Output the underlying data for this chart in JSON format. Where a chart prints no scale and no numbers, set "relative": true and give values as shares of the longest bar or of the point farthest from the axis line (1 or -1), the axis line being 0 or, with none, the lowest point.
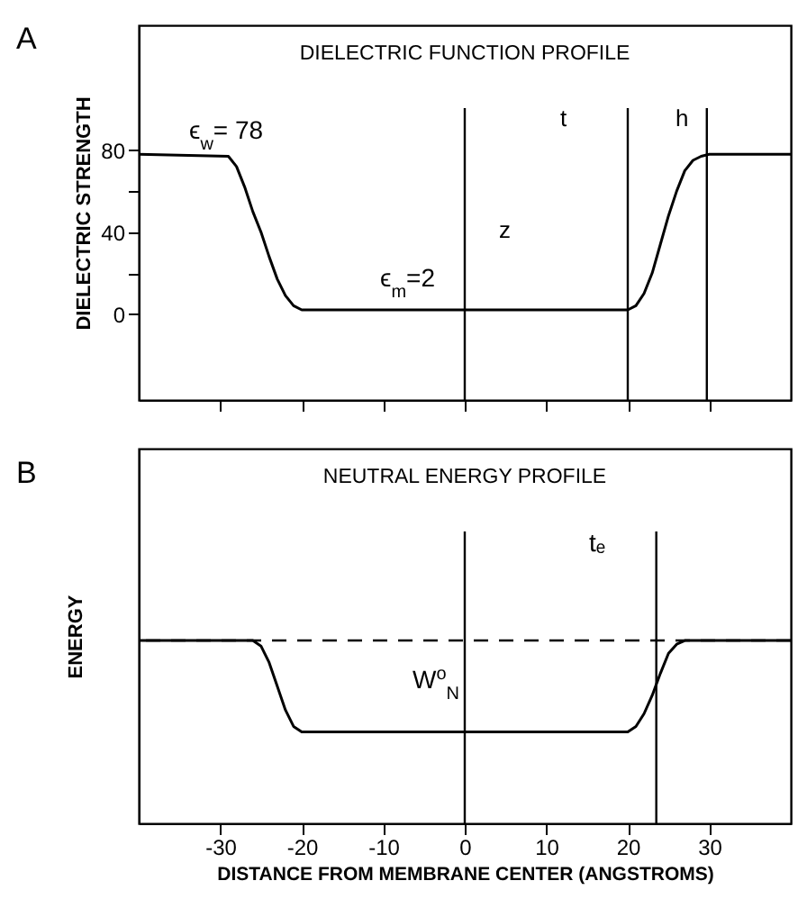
{
  "chart_data": [
    {
      "type": "line",
      "title": "DIELECTRIC FUNCTION PROFILE",
      "ylabel": "DIELECTRIC STRENGTH",
      "x": [
        -40,
        -29,
        -28,
        -27,
        -26,
        -25,
        -24,
        -23,
        -22,
        -21,
        -20,
        0,
        20,
        21,
        22,
        23,
        24,
        25,
        26,
        27,
        28,
        29,
        30,
        40
      ],
      "series": [
        {
          "color": "#000000",
          "values": [
            78,
            77,
            72,
            62,
            50,
            40,
            28,
            17,
            9,
            4,
            2,
            2,
            2,
            4,
            10,
            20,
            34,
            48,
            60,
            70,
            75,
            77,
            78,
            78
          ]
        }
      ],
      "xlim": [
        -40,
        40
      ],
      "xticks": [
        {
          "value": -30,
          "label": null
        },
        {
          "value": -20,
          "label": null
        },
        {
          "value": -10,
          "label": null
        },
        {
          "value": 0,
          "label": null
        },
        {
          "value": 10,
          "label": null
        },
        {
          "value": 20,
          "label": null
        },
        {
          "value": 30,
          "label": null
        }
      ],
      "ylim": [
        -42,
        141
      ],
      "yticks": [
        0,
        {
          "value": 20,
          "label": null
        },
        40,
        {
          "value": 60,
          "label": null
        },
        80
      ],
      "tick_labels": "y",
      "grid": false,
      "ref_lines": [
        {
          "axis": "x",
          "value": 0
        },
        {
          "axis": "x",
          "value": 20
        },
        {
          "axis": "x",
          "value": 29.7
        }
      ],
      "annotations": [
        "A",
        "ϵ$_{w}$= 78",
        "ϵ$_{m}$=2",
        "t",
        "h",
        "z"
      ]
    },
    {
      "type": "line",
      "title": "NEUTRAL ENERGY PROFILE",
      "ylabel": "ENERGY",
      "xlabel": "DISTANCE FROM MEMBRANE CENTER (ANGSTROMS)",
      "relative": true,
      "x": [
        -40,
        -26,
        -25,
        -24,
        -23,
        -22,
        -21,
        -20,
        0,
        20,
        21,
        22,
        23,
        24,
        25,
        26,
        27,
        40
      ],
      "series": [
        {
          "color": "#000000",
          "values": [
            1,
            1,
            0.97,
            0.88,
            0.75,
            0.62,
            0.53,
            0.5,
            0.5,
            0.5,
            0.53,
            0.6,
            0.7,
            0.82,
            0.93,
            0.98,
            1,
            1
          ]
        }
      ],
      "xlim": [
        -40,
        40
      ],
      "xticks": [
        -30,
        -20,
        -10,
        0,
        10,
        20,
        30
      ],
      "tick_labels": "x",
      "grid": false,
      "ref_lines": [
        {
          "axis": "y",
          "value": 1,
          "line_style": "dashed"
        },
        {
          "axis": "x",
          "value": 0
        },
        {
          "axis": "x",
          "value": 23.5
        }
      ],
      "annotations": [
        "B",
        "tₑ",
        "W$^{o}$$_{N}$"
      ]
    }
  ]
}
